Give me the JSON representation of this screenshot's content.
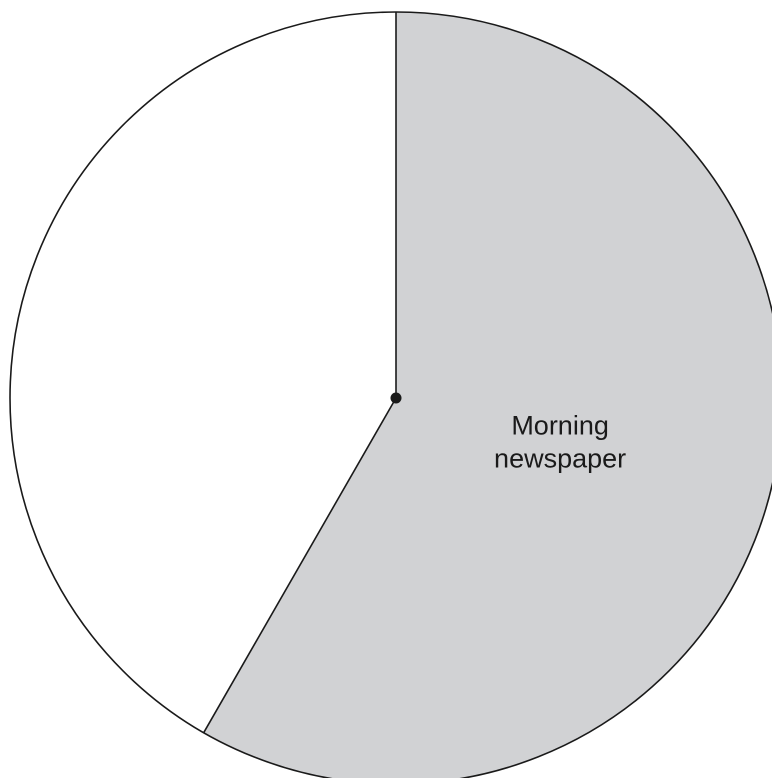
{
  "chart_data": {
    "type": "pie",
    "slices": [
      {
        "label": "Morning newspaper",
        "label_lines": [
          "Morning",
          "newspaper"
        ],
        "value": 58.3,
        "color": "#d1d2d4"
      },
      {
        "label": "",
        "label_lines": [],
        "value": 41.7,
        "color": "#ffffff"
      }
    ],
    "start_angle_deg": 0,
    "direction": "clockwise",
    "title": "",
    "legend": "none"
  }
}
